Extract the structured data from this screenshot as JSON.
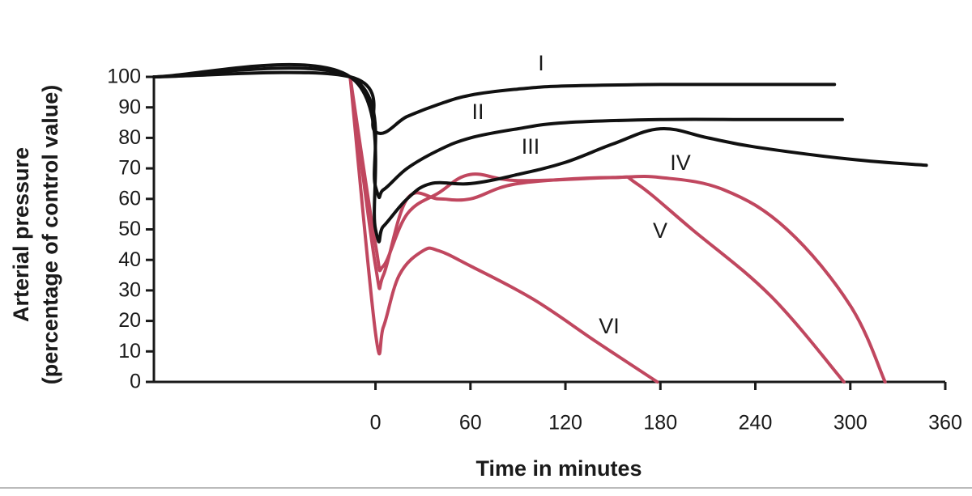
{
  "chart_data": {
    "type": "line",
    "xlabel": "Time in minutes",
    "ylabel": [
      "Arterial pressure",
      "(percentage of control value)"
    ],
    "xlim": [
      -140,
      360
    ],
    "ylim": [
      0,
      100
    ],
    "xticks": [
      0,
      60,
      120,
      180,
      240,
      300,
      360
    ],
    "yticks": [
      0,
      10,
      20,
      30,
      40,
      50,
      60,
      70,
      80,
      90,
      100
    ],
    "series": [
      {
        "name": "I",
        "color": "#111111",
        "x": [
          -140,
          -16,
          0,
          20,
          40,
          60,
          90,
          120,
          180,
          240,
          290
        ],
        "values": [
          100,
          100,
          82,
          87,
          91,
          94,
          96,
          97,
          97.5,
          97.5,
          97.5
        ]
      },
      {
        "name": "II",
        "color": "#111111",
        "x": [
          -140,
          -16,
          0,
          5,
          20,
          40,
          60,
          90,
          120,
          180,
          240,
          295
        ],
        "values": [
          100,
          100,
          64,
          63,
          70,
          76,
          80,
          83,
          85,
          86,
          86,
          86
        ]
      },
      {
        "name": "III",
        "color": "#111111",
        "x": [
          -140,
          -16,
          0,
          5,
          20,
          35,
          60,
          90,
          120,
          150,
          180,
          210,
          240,
          300,
          348
        ],
        "values": [
          100,
          100,
          50,
          51,
          60,
          65,
          65,
          68,
          72,
          78,
          83,
          80,
          77,
          73,
          71
        ]
      },
      {
        "name": "IV",
        "color": "#c0475f",
        "x": [
          -16,
          0,
          5,
          20,
          40,
          60,
          90,
          150,
          180,
          220,
          260,
          300,
          322
        ],
        "values": [
          100,
          45,
          38,
          55,
          62,
          68,
          66,
          67,
          67,
          63,
          50,
          25,
          0
        ]
      },
      {
        "name": "V",
        "color": "#c0475f",
        "x": [
          -16,
          0,
          5,
          20,
          40,
          60,
          90,
          150,
          165,
          200,
          250,
          296
        ],
        "values": [
          100,
          38,
          35,
          60,
          60,
          60,
          65,
          67,
          65,
          50,
          28,
          0
        ]
      },
      {
        "name": "VI",
        "color": "#c0475f",
        "x": [
          -16,
          0,
          5,
          15,
          30,
          40,
          60,
          100,
          140,
          178
        ],
        "values": [
          100,
          16,
          18,
          35,
          43,
          43,
          38,
          27,
          13,
          0
        ]
      }
    ]
  }
}
